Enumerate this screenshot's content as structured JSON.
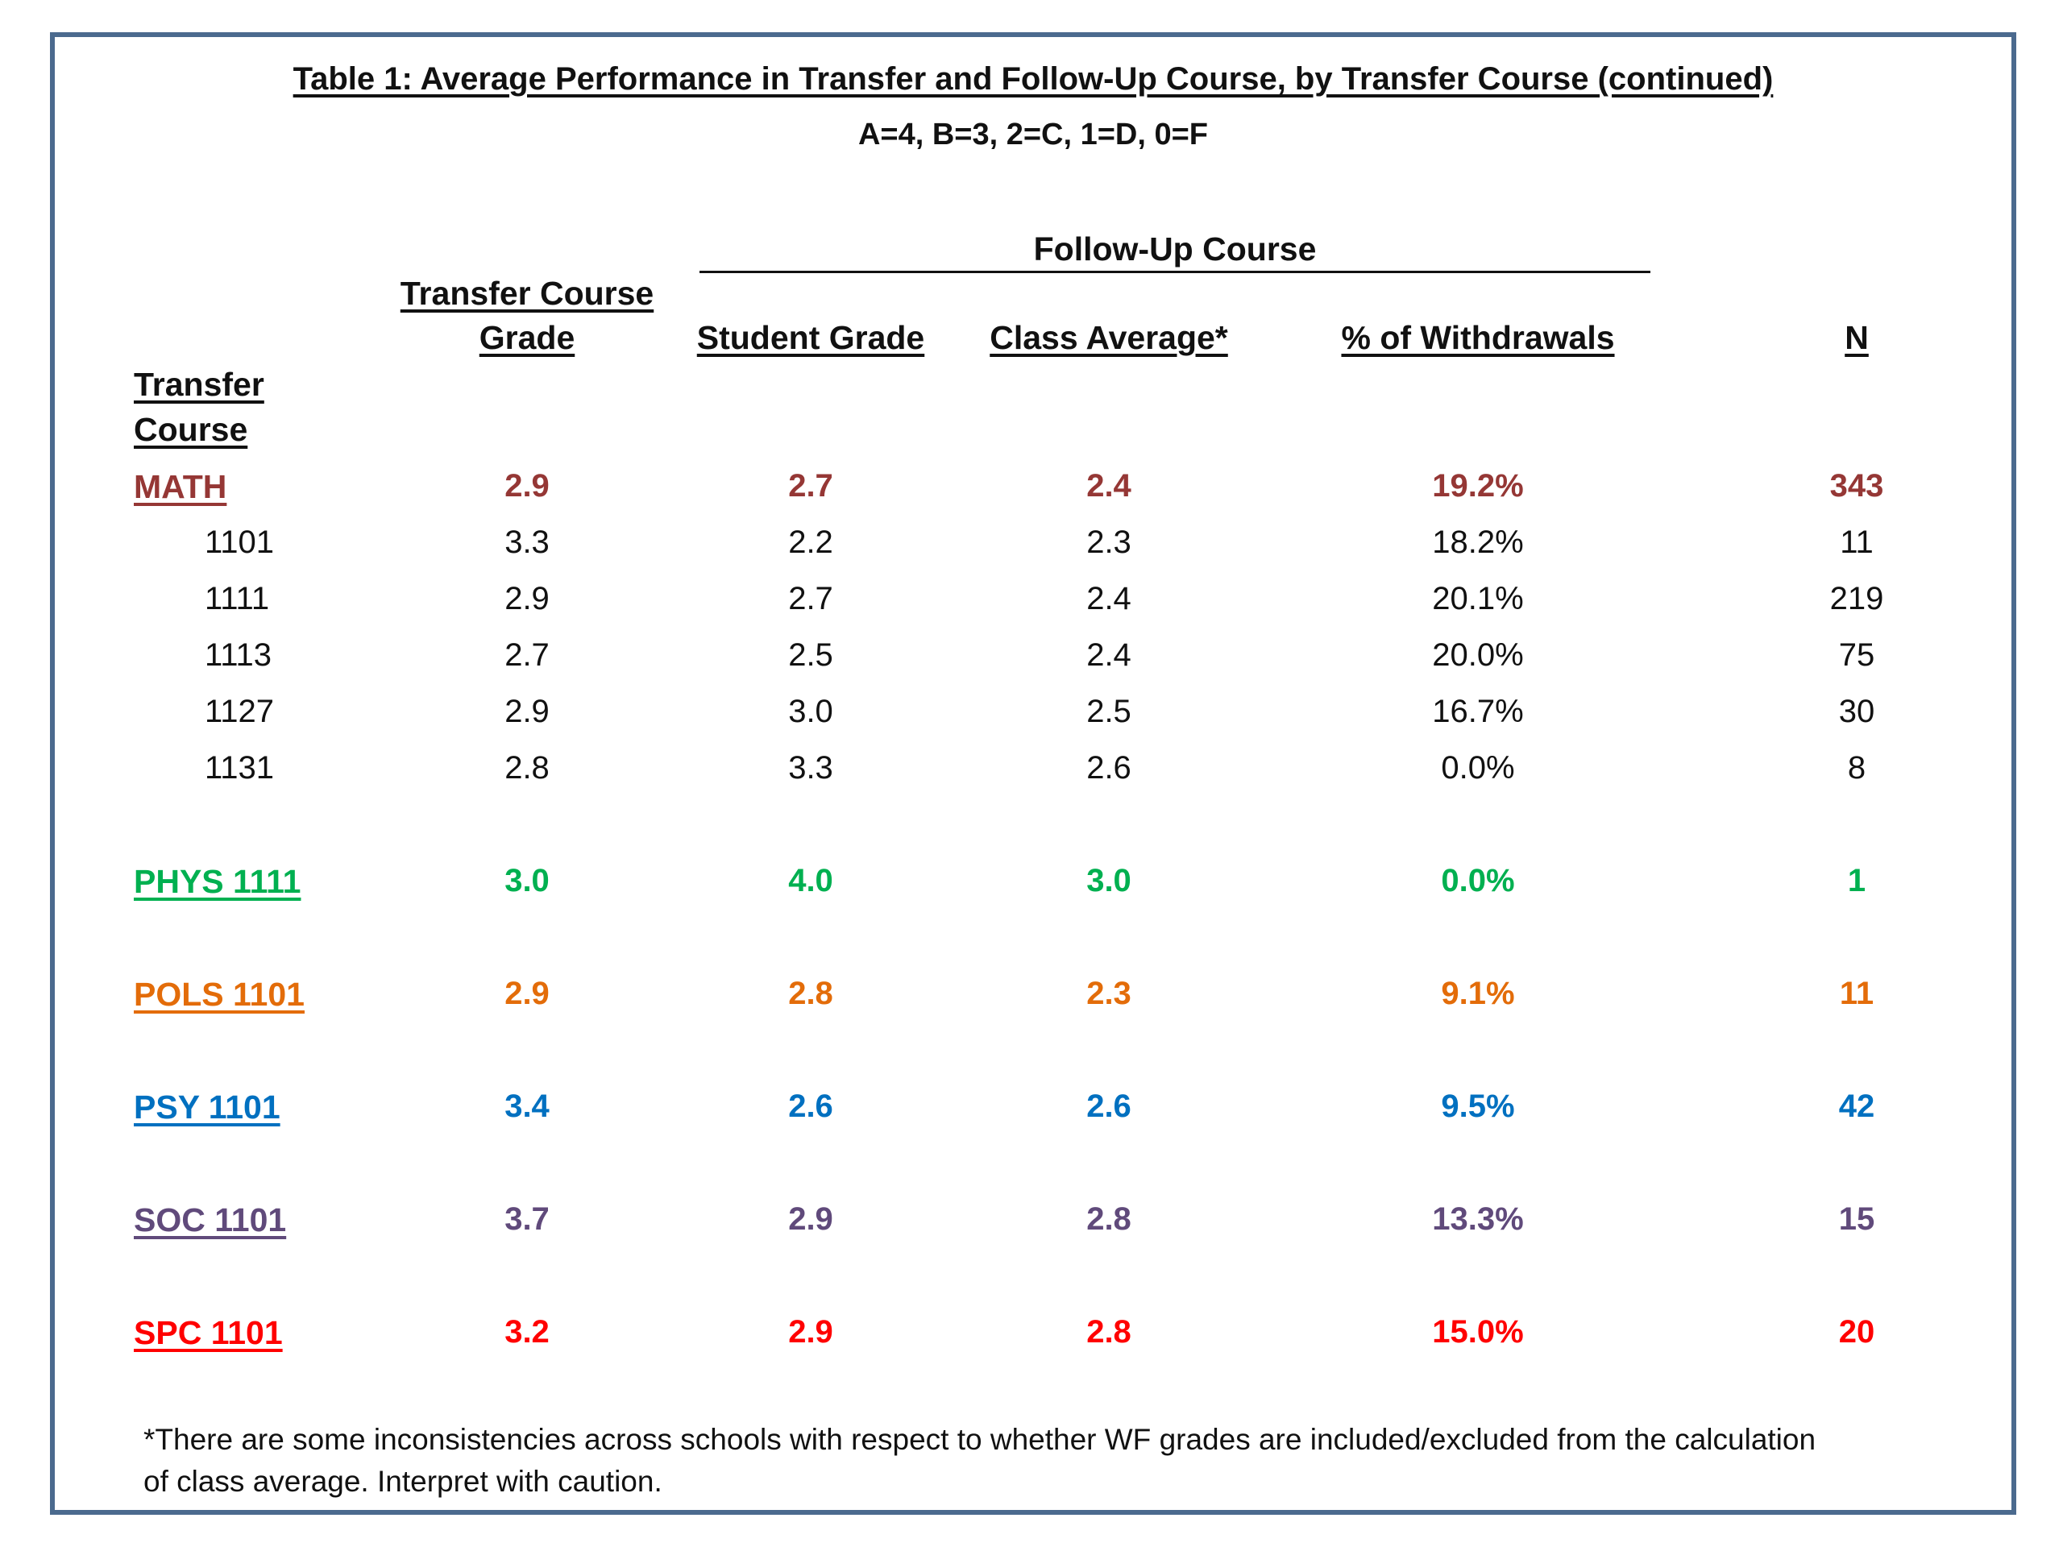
{
  "title": "Table 1: Average Performance in Transfer and Follow-Up Course, by Transfer Course (continued)",
  "subtitle": "A=4, B=3, 2=C, 1=D, 0=F",
  "headers": {
    "transfer_course_line1": "Transfer",
    "transfer_course_line2": "Course",
    "transfer_grade_line1": "Transfer Course",
    "transfer_grade_line2": "Grade",
    "follow_up": "Follow-Up Course",
    "student_grade": "Student Grade",
    "class_average": "Class Average*",
    "withdrawals": "% of Withdrawals",
    "n": "N"
  },
  "colors": {
    "MATH": "#953735",
    "PHYS": "#00b050",
    "POLS": "#e36c09",
    "PSY": "#0070c0",
    "SOC": "#604a7b",
    "SPC": "#ff0000",
    "text": "#111111",
    "frame": "#4b6a8e"
  },
  "rows": [
    {
      "course": "MATH",
      "transfer_grade": "2.9",
      "student_grade": "2.7",
      "class_average": "2.4",
      "withdrawals": "19.2%",
      "n": "343"
    },
    {
      "course": "1101",
      "transfer_grade": "3.3",
      "student_grade": "2.2",
      "class_average": "2.3",
      "withdrawals": "18.2%",
      "n": "11"
    },
    {
      "course": "1111",
      "transfer_grade": "2.9",
      "student_grade": "2.7",
      "class_average": "2.4",
      "withdrawals": "20.1%",
      "n": "219"
    },
    {
      "course": "1113",
      "transfer_grade": "2.7",
      "student_grade": "2.5",
      "class_average": "2.4",
      "withdrawals": "20.0%",
      "n": "75"
    },
    {
      "course": "1127",
      "transfer_grade": "2.9",
      "student_grade": "3.0",
      "class_average": "2.5",
      "withdrawals": "16.7%",
      "n": "30"
    },
    {
      "course": "1131",
      "transfer_grade": "2.8",
      "student_grade": "3.3",
      "class_average": "2.6",
      "withdrawals": "0.0%",
      "n": "8"
    },
    {
      "course": "PHYS 1111",
      "transfer_grade": "3.0",
      "student_grade": "4.0",
      "class_average": "3.0",
      "withdrawals": "0.0%",
      "n": "1"
    },
    {
      "course": "POLS 1101",
      "transfer_grade": "2.9",
      "student_grade": "2.8",
      "class_average": "2.3",
      "withdrawals": "9.1%",
      "n": "11"
    },
    {
      "course": "PSY 1101",
      "transfer_grade": "3.4",
      "student_grade": "2.6",
      "class_average": "2.6",
      "withdrawals": "9.5%",
      "n": "42"
    },
    {
      "course": "SOC 1101",
      "transfer_grade": "3.7",
      "student_grade": "2.9",
      "class_average": "2.8",
      "withdrawals": "13.3%",
      "n": "15"
    },
    {
      "course": "SPC 1101",
      "transfer_grade": "3.2",
      "student_grade": "2.9",
      "class_average": "2.8",
      "withdrawals": "15.0%",
      "n": "20"
    }
  ],
  "footnote": "*There are some inconsistencies across schools with respect to whether WF grades are included/excluded from the calculation of class average. Interpret with caution."
}
